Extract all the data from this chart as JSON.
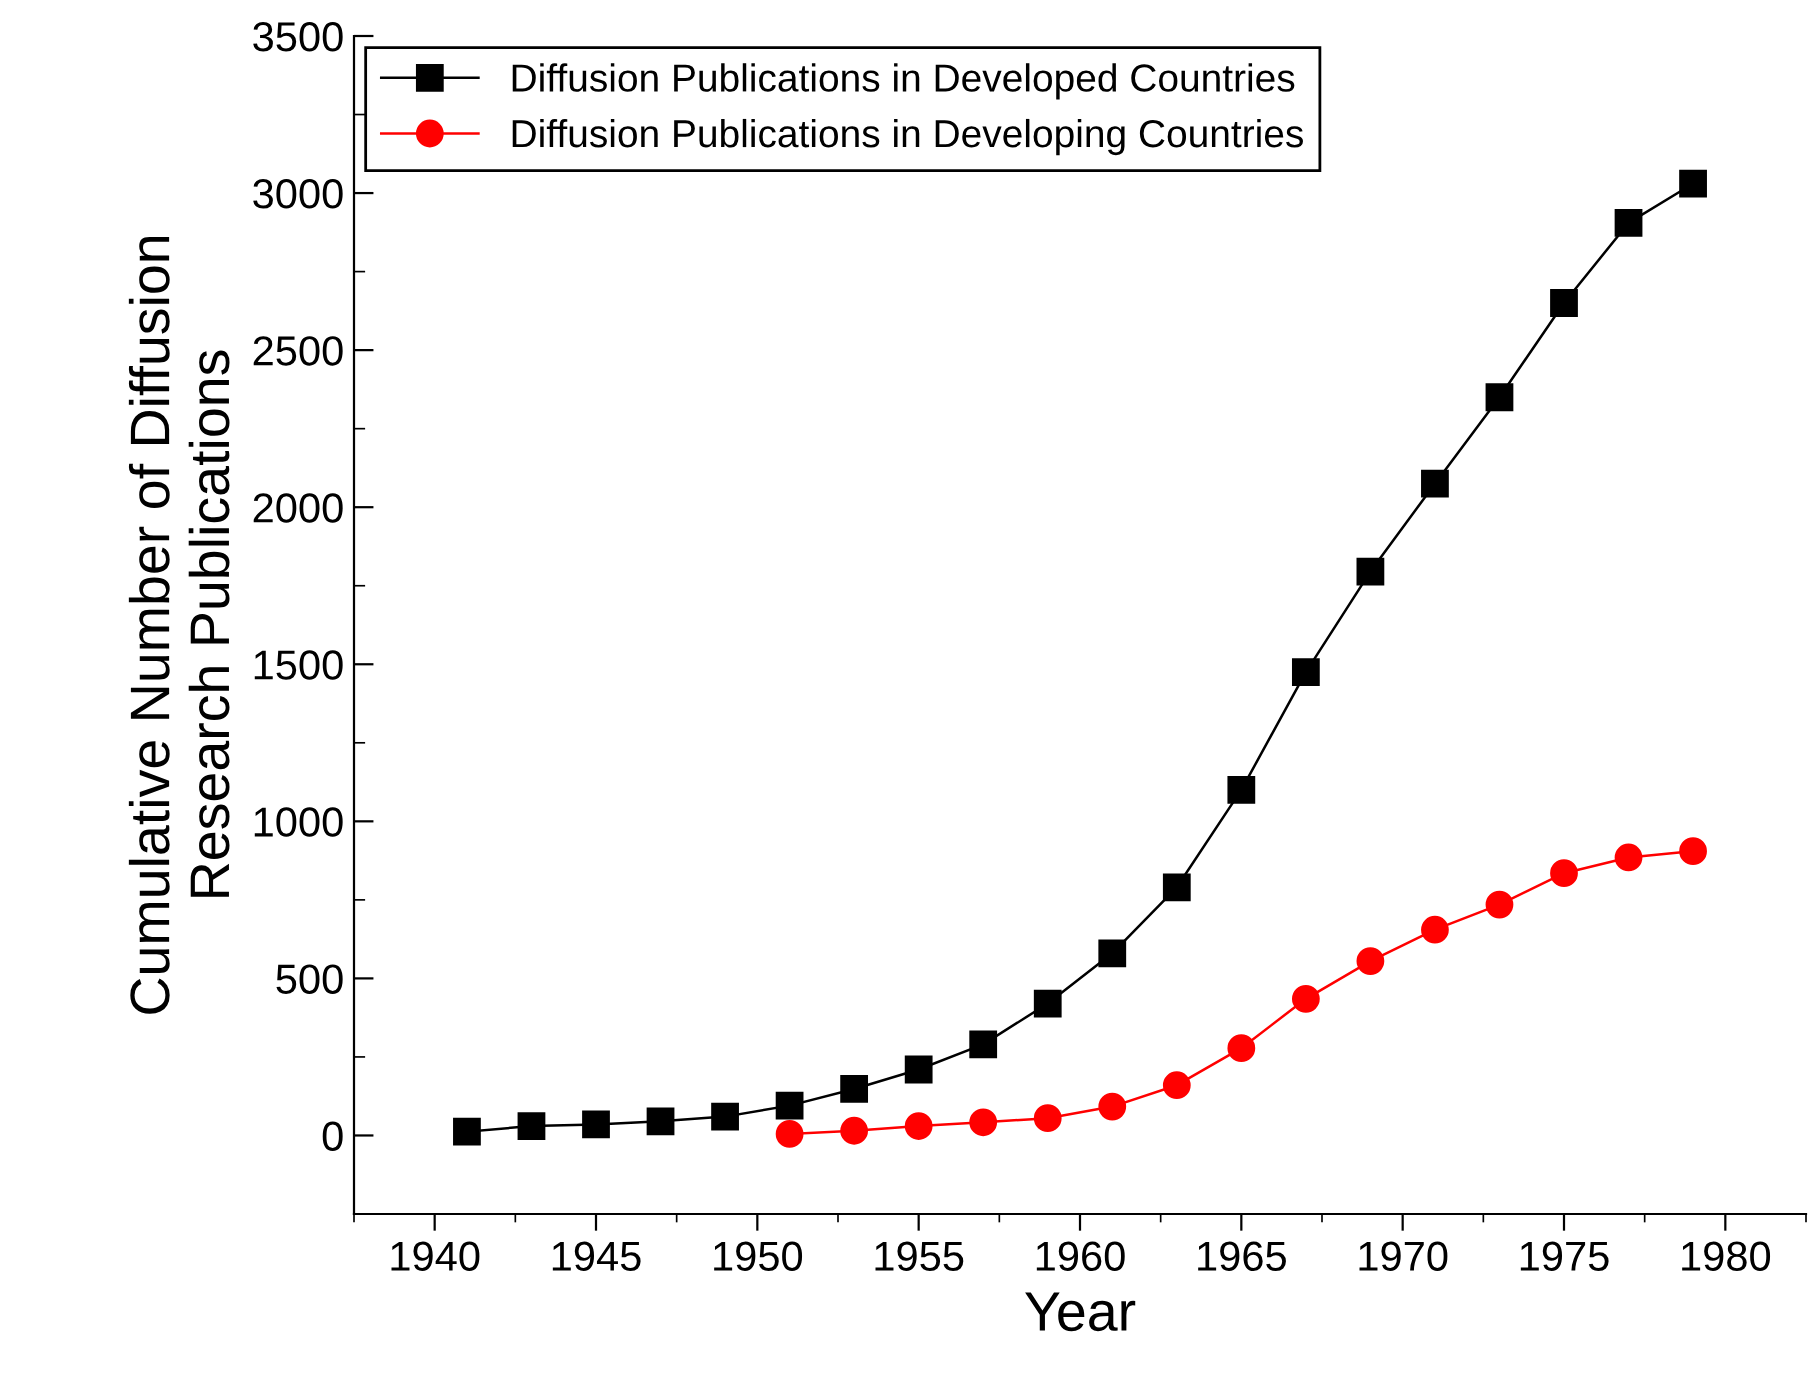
{
  "chart_data": {
    "type": "line",
    "xlabel": "Year",
    "ylabel": "Cumulative Number of Diffusion\nResearch Publications",
    "x": [
      1941,
      1943,
      1945,
      1947,
      1949,
      1951,
      1953,
      1955,
      1957,
      1959,
      1961,
      1963,
      1965,
      1967,
      1969,
      1971,
      1973,
      1975,
      1977,
      1979
    ],
    "series": [
      {
        "name": "Diffusion Publications in Developed Countries",
        "color": "#000000",
        "marker": "square",
        "values": [
          12,
          30,
          35,
          45,
          60,
          95,
          148,
          210,
          290,
          420,
          580,
          790,
          1100,
          1475,
          1795,
          2075,
          2350,
          2650,
          2905,
          3030
        ]
      },
      {
        "name": "Diffusion Publications in Developing Countries",
        "color": "#ff0000",
        "marker": "circle",
        "x": [
          1951,
          1953,
          1955,
          1957,
          1959,
          1961,
          1963,
          1965,
          1967,
          1969,
          1971,
          1973,
          1975,
          1977,
          1979
        ],
        "values": [
          5,
          15,
          30,
          42,
          55,
          92,
          160,
          278,
          435,
          555,
          655,
          735,
          835,
          885,
          905
        ]
      }
    ],
    "xlim": [
      1937.5,
      1982.5
    ],
    "xticks": [
      1940,
      1945,
      1950,
      1955,
      1960,
      1965,
      1970,
      1975,
      1980
    ],
    "ylim": [
      -250,
      3500
    ],
    "yticks": [
      0,
      500,
      1000,
      1500,
      2000,
      2500,
      3000,
      3500
    ],
    "grid": false,
    "legend": "top left",
    "line_style": "solid"
  }
}
